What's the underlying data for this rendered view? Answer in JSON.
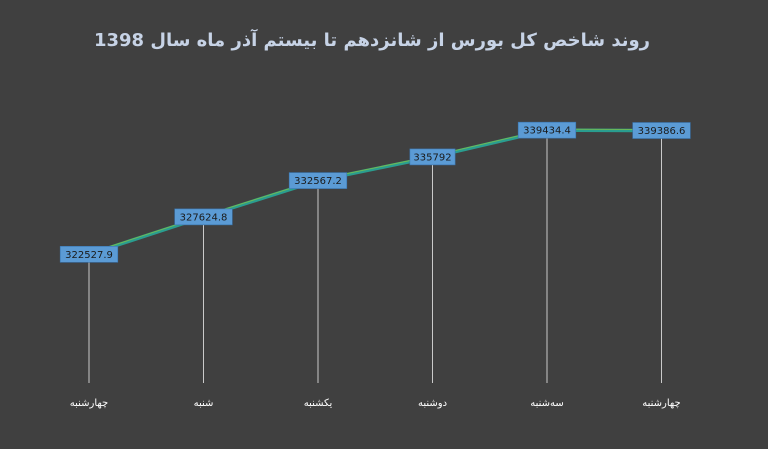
{
  "chart_data": {
    "type": "line",
    "title": "روند شاخص کل بورس از شانزدهم تا بیستم آذر ماه سال 1398",
    "xlabel": "",
    "ylabel": "",
    "categories": [
      "چهارشنبه",
      "شنبه",
      "یکشنبه",
      "دوشنبه",
      "سه‌شنبه",
      "چهارشنبه"
    ],
    "series": [
      {
        "values": [
          322527.9,
          327624.8,
          332567.2,
          335792,
          339434.4,
          339386.6
        ]
      }
    ],
    "data_labels": [
      "322527.9",
      "327624.8",
      "332567.2",
      "335792",
      "339434.4",
      "339386.6"
    ],
    "ylim": [
      305000,
      341500
    ],
    "grid": false,
    "legend": "none",
    "colors": {
      "background": "#404040",
      "title": "#c7d3e6",
      "line": "#2a9d8f",
      "line_highlight": "#9acd32",
      "label_box": "#5b9bd5",
      "label_text": "#1a1a1a",
      "axis_text": "#ffffff",
      "drop_line": "#ffffff"
    }
  }
}
